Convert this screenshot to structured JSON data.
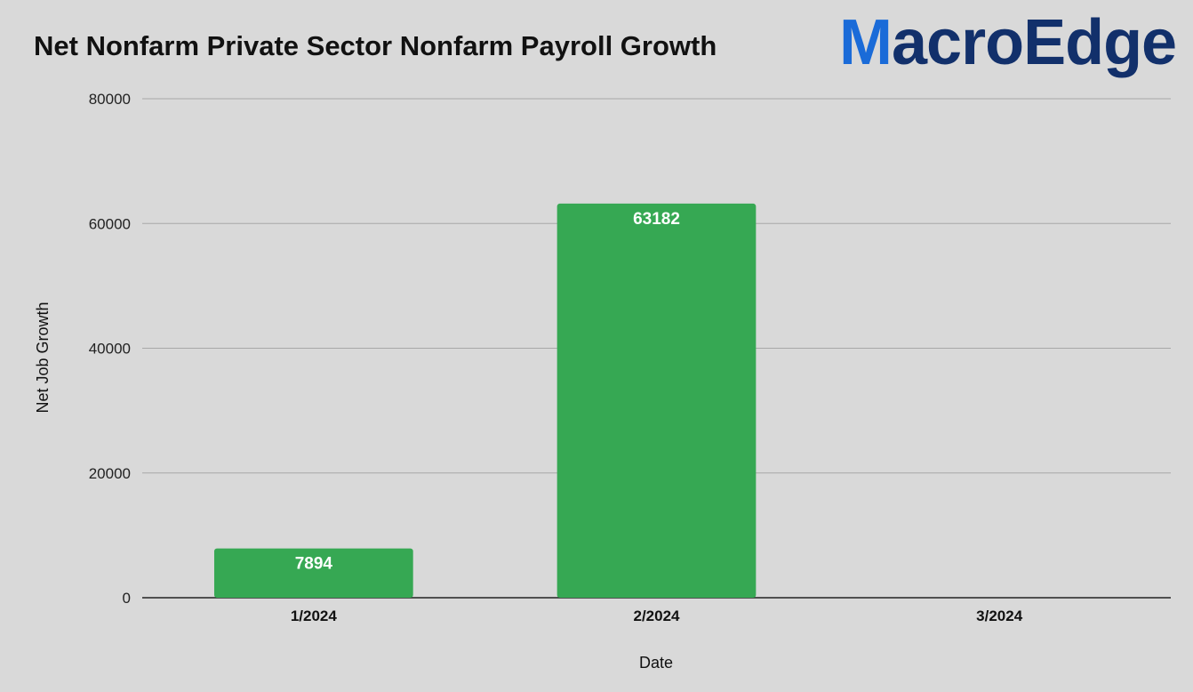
{
  "header": {
    "title": "Net Nonfarm Private Sector Nonfarm Payroll Growth",
    "logo_first": "M",
    "logo_rest": "acroEdge"
  },
  "colors": {
    "bar": "#36a853",
    "logo_accent": "#1a6bd8",
    "logo_dark": "#12306b",
    "grid": "#a8a8a8",
    "background": "#d9d9d9"
  },
  "chart_data": {
    "type": "bar",
    "title": "Net Nonfarm Private Sector Nonfarm Payroll Growth",
    "xlabel": "Date",
    "ylabel": "Net Job Growth",
    "categories": [
      "1/2024",
      "2/2024",
      "3/2024"
    ],
    "values": [
      7894,
      63182,
      null
    ],
    "data_labels": [
      "7894",
      "63182",
      ""
    ],
    "ylim": [
      0,
      80000
    ],
    "yticks": [
      0,
      20000,
      40000,
      60000,
      80000
    ],
    "grid": true,
    "legend": "none"
  }
}
